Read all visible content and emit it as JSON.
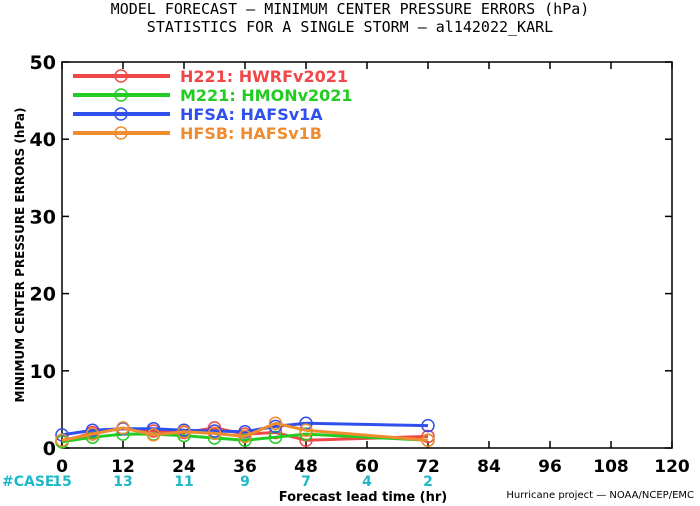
{
  "title": {
    "line1": "MODEL FORECAST — MINIMUM CENTER PRESSURE ERRORS (hPa)",
    "line2": "STATISTICS FOR A SINGLE STORM — al142022_KARL"
  },
  "footer": "Hurricane project — NOAA/NCEP/EMC",
  "colors": {
    "H221": "#f04848",
    "M221": "#22cc22",
    "HFSA": "#3050ee",
    "HFSB": "#f08c30",
    "case": "#20b8c8"
  },
  "chart_data": {
    "type": "line",
    "title": "MODEL FORECAST — MINIMUM CENTER PRESSURE ERRORS (hPa)",
    "subtitle": "STATISTICS FOR A SINGLE STORM — al142022_KARL",
    "xlabel": "Forecast lead time (hr)",
    "ylabel": "MINIMUM CENTER PRESSURE ERRORS (hPa)",
    "xlim": [
      0,
      120
    ],
    "ylim": [
      0,
      50
    ],
    "xticks": [
      0,
      12,
      24,
      36,
      48,
      60,
      72,
      84,
      96,
      108,
      120
    ],
    "yticks": [
      0,
      10,
      20,
      30,
      40,
      50
    ],
    "legend_position": "top-left",
    "series": [
      {
        "name": "H221: HWRFv2021",
        "key": "H221",
        "x": [
          0,
          6,
          12,
          18,
          24,
          30,
          36,
          42,
          48,
          72
        ],
        "y": [
          0.8,
          2.0,
          2.5,
          2.2,
          2.0,
          2.6,
          1.8,
          2.0,
          1.0,
          1.5
        ]
      },
      {
        "name": "M221: HMONv2021",
        "key": "M221",
        "x": [
          0,
          6,
          12,
          18,
          24,
          30,
          36,
          42,
          48,
          72
        ],
        "y": [
          0.8,
          1.4,
          1.8,
          1.8,
          1.6,
          1.3,
          1.0,
          1.4,
          1.8,
          1.0
        ]
      },
      {
        "name": "HFSA: HAFSv1A",
        "key": "HFSA",
        "x": [
          0,
          6,
          12,
          18,
          24,
          30,
          36,
          42,
          48,
          72
        ],
        "y": [
          1.7,
          2.3,
          2.5,
          2.5,
          2.3,
          2.2,
          2.1,
          2.8,
          3.2,
          2.9
        ]
      },
      {
        "name": "HFSB: HAFSv1B",
        "key": "HFSB",
        "x": [
          0,
          6,
          12,
          18,
          24,
          30,
          36,
          42,
          48,
          72
        ],
        "y": [
          1.0,
          1.8,
          2.6,
          1.7,
          2.1,
          1.9,
          1.5,
          3.2,
          2.3,
          1.0
        ]
      }
    ],
    "case_label": "#CASE",
    "cases": [
      {
        "x": 0,
        "n": "15"
      },
      {
        "x": 12,
        "n": "13"
      },
      {
        "x": 24,
        "n": "11"
      },
      {
        "x": 36,
        "n": "9"
      },
      {
        "x": 48,
        "n": "7"
      },
      {
        "x": 60,
        "n": "4"
      },
      {
        "x": 72,
        "n": "2"
      }
    ]
  }
}
